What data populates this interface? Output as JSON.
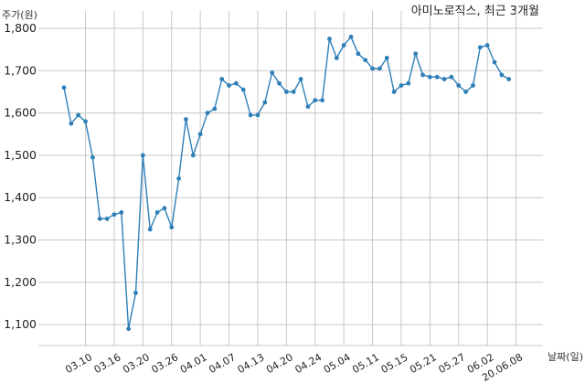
{
  "chart_data": {
    "type": "line",
    "title": "아미노로직스, 최근 3개월",
    "xlabel": "날짜(일)",
    "ylabel": "주가(원)",
    "ylim": [
      1060,
      1820
    ],
    "yticks": [
      1100,
      1200,
      1300,
      1400,
      1500,
      1600,
      1700,
      1800
    ],
    "ytick_labels": [
      "1,100",
      "1,200",
      "1,300",
      "1,400",
      "1,500",
      "1,600",
      "1,700",
      "1,800"
    ],
    "xtick_labels": [
      "03.10",
      "03.16",
      "03.20",
      "03.26",
      "04.01",
      "04.07",
      "04.13",
      "04.20",
      "04.24",
      "05.04",
      "05.11",
      "05.15",
      "05.21",
      "05.27",
      "06.02",
      "20.06.08"
    ],
    "xtick_index": [
      3,
      7,
      11,
      15,
      19,
      23,
      27,
      31,
      35,
      39,
      43,
      47,
      51,
      55,
      59,
      63
    ],
    "grid": true,
    "series": [
      {
        "values": [
          1660,
          1575,
          1595,
          1580,
          1495,
          1350,
          1350,
          1360,
          1365,
          1090,
          1175,
          1500,
          1325,
          1365,
          1375,
          1330,
          1445,
          1585,
          1500,
          1550,
          1600,
          1610,
          1680,
          1665,
          1670,
          1655,
          1595,
          1595,
          1625,
          1695,
          1670,
          1650,
          1650,
          1680,
          1615,
          1630,
          1630,
          1775,
          1730,
          1760,
          1780,
          1740,
          1725,
          1705,
          1705,
          1730,
          1650,
          1665,
          1670,
          1740,
          1690,
          1685,
          1685,
          1680,
          1685,
          1665,
          1650,
          1665,
          1755,
          1760,
          1720,
          1690,
          1680
        ]
      }
    ]
  },
  "colors": {
    "line": "#2e7fb8",
    "grid": "#c8c8c8"
  }
}
